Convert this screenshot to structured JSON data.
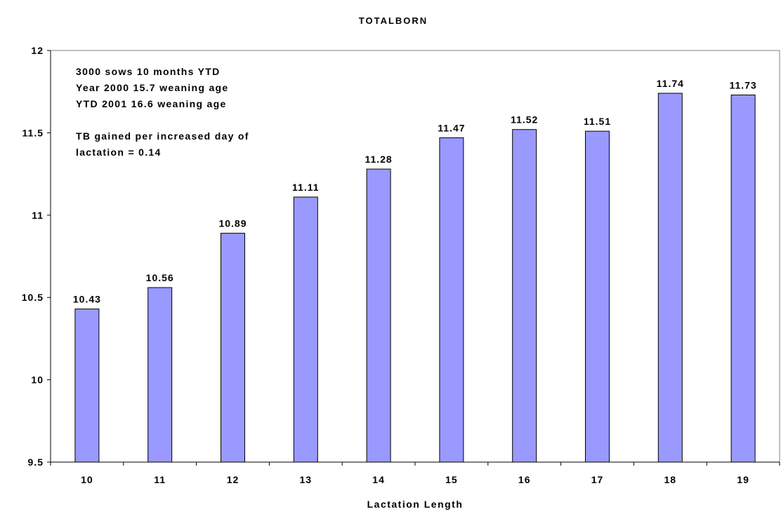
{
  "chart_data": {
    "type": "bar",
    "title": "TOTALBORN",
    "xlabel": "Lactation Length",
    "ylabel": "",
    "categories": [
      "10",
      "11",
      "12",
      "13",
      "14",
      "15",
      "16",
      "17",
      "18",
      "19"
    ],
    "values": [
      10.43,
      10.56,
      10.89,
      11.11,
      11.28,
      11.47,
      11.52,
      11.51,
      11.74,
      11.73
    ],
    "data_labels": [
      "10.43",
      "10.56",
      "10.89",
      "11.11",
      "11.28",
      "11.47",
      "11.52",
      "11.51",
      "11.74",
      "11.73"
    ],
    "ylim": [
      9.5,
      12
    ],
    "yticks": [
      9.5,
      10,
      10.5,
      11,
      11.5,
      12
    ],
    "ytick_labels": [
      "9.5",
      "10",
      "10.5",
      "11",
      "11.5",
      "12"
    ],
    "grid": false,
    "legend": "none",
    "bar_color": "#9999FF",
    "annotation_lines": [
      "3000 sows 10 months YTD",
      "Year 2000 15.7 weaning age",
      "YTD 2001  16.6 weaning age",
      "",
      "TB gained per increased day of",
      "lactation = 0.14"
    ]
  }
}
